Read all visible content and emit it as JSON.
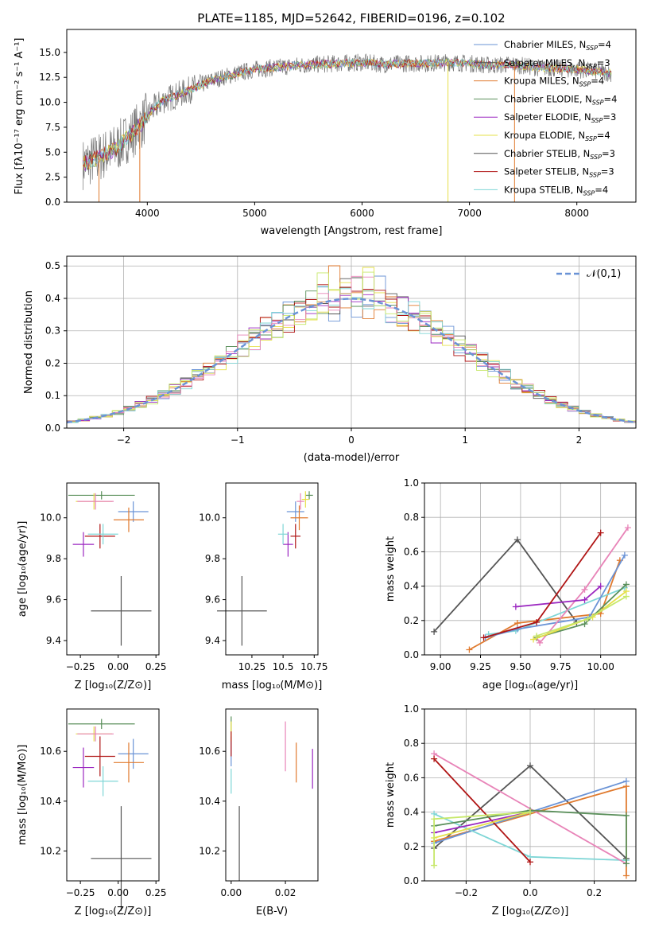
{
  "colors": {
    "Chabrier MILES": "#6a93d6",
    "Salpeter MILES": "#555555",
    "Kroupa MILES": "#e07a2e",
    "Chabrier ELODIE": "#5a8f5a",
    "Salpeter ELODIE": "#9b27c0",
    "Kroupa ELODIE": "#e6e04a",
    "Chabrier STELIB": "#555555",
    "Salpeter STELIB": "#b01515",
    "Kroupa STELIB": "#7fd6d6",
    "extra_pink": "#e884b8",
    "extra_lime": "#c7e86a",
    "normal": "#6a93d6"
  },
  "chart_data": [
    {
      "type": "line",
      "title": "PLATE=1185, MJD=52642, FIBERID=0196, z=0.102",
      "xlabel": "wavelength [Angstrom, rest frame]",
      "ylabel": "Flux [fλ10⁻¹⁷ erg cm⁻² s⁻¹ A⁻¹]",
      "xlim": [
        3250,
        8550
      ],
      "ylim": [
        0,
        17.3
      ],
      "xticks": [
        4000,
        5000,
        6000,
        7000,
        8000
      ],
      "yticks": [
        0.0,
        2.5,
        5.0,
        7.5,
        10.0,
        12.5,
        15.0
      ],
      "legend_position": "right",
      "legend": [
        "Chabrier MILES, N_SSP=4",
        "Salpeter MILES, N_SSP=3",
        "Kroupa MILES, N_SSP=4",
        "Chabrier ELODIE, N_SSP=4",
        "Salpeter ELODIE, N_SSP=3",
        "Kroupa ELODIE, N_SSP=4",
        "Chabrier STELIB, N_SSP=3",
        "Salpeter STELIB, N_SSP=3",
        "Kroupa STELIB, N_SSP=4"
      ],
      "continuum": {
        "x": [
          3400,
          3550,
          3700,
          3850,
          3950,
          4050,
          4150,
          4300,
          4450,
          4600,
          4800,
          5000,
          5200,
          5400,
          5600,
          5800,
          6000,
          6200,
          6400,
          6600,
          6800,
          7000,
          7200,
          7400,
          7600,
          7800,
          8000,
          8200,
          8320
        ],
        "y": [
          3.8,
          4.5,
          5.3,
          6.8,
          7.9,
          9.3,
          10.2,
          10.8,
          11.5,
          12.2,
          12.8,
          13.3,
          13.5,
          13.7,
          13.8,
          13.9,
          14.0,
          13.8,
          13.9,
          13.9,
          14.0,
          13.9,
          13.7,
          13.8,
          13.5,
          13.4,
          13.3,
          13.1,
          12.9
        ]
      },
      "drops": [
        3550,
        3930,
        6800,
        7420
      ]
    },
    {
      "type": "bar",
      "xlabel": "(data-model)/error",
      "ylabel": "Normed distribution",
      "xlim": [
        -2.5,
        2.5
      ],
      "ylim": [
        0,
        0.53
      ],
      "xticks": [
        -2,
        -1,
        0,
        1,
        2
      ],
      "yticks": [
        0.0,
        0.1,
        0.2,
        0.3,
        0.4,
        0.5
      ],
      "legend": [
        "𝒩(0,1)"
      ],
      "legend_position": "top-right",
      "bin_width": 0.1
    },
    {
      "type": "scatter",
      "xlabel": "Z [log₁₀(Z/Z⊙)]",
      "ylabel": "age  [log₁₀(age/yr)]",
      "xlim": [
        -0.34,
        0.27
      ],
      "ylim": [
        9.33,
        10.17
      ],
      "xticks": [
        -0.25,
        0.0,
        0.25
      ],
      "xticklabels": [
        "−0.25",
        "0.00",
        "0.25"
      ],
      "yticks": [
        9.4,
        9.6,
        9.8,
        10.0
      ],
      "points": [
        {
          "x": 0.1,
          "y": 10.03,
          "xerr": 0.1,
          "yerr": 0.05,
          "color": "#6a93d6"
        },
        {
          "x": 0.02,
          "y": 9.545,
          "xerr": 0.2,
          "yerr": 0.17,
          "color": "#555555"
        },
        {
          "x": 0.07,
          "y": 9.99,
          "xerr": 0.1,
          "yerr": 0.06,
          "color": "#e07a2e"
        },
        {
          "x": -0.11,
          "y": 10.11,
          "xerr": 0.22,
          "yerr": 0.02,
          "color": "#5a8f5a"
        },
        {
          "x": -0.23,
          "y": 9.87,
          "xerr": 0.07,
          "yerr": 0.06,
          "color": "#9b27c0"
        },
        {
          "x": -0.16,
          "y": 10.08,
          "xerr": 0.12,
          "yerr": 0.04,
          "color": "#e6e04a"
        },
        {
          "x": -0.12,
          "y": 9.91,
          "xerr": 0.1,
          "yerr": 0.06,
          "color": "#b01515"
        },
        {
          "x": -0.1,
          "y": 9.92,
          "xerr": 0.1,
          "yerr": 0.05,
          "color": "#7fd6d6"
        },
        {
          "x": -0.15,
          "y": 10.08,
          "xerr": 0.12,
          "yerr": 0.04,
          "color": "#e884b8"
        }
      ]
    },
    {
      "type": "scatter",
      "xlabel": "mass [log₁₀(M/M⊙)]",
      "ylabel": "",
      "xlim": [
        10.04,
        10.78
      ],
      "ylim": [
        9.33,
        10.17
      ],
      "xticks": [
        10.25,
        10.5,
        10.75
      ],
      "yticks": [
        9.4,
        9.6,
        9.8,
        10.0
      ],
      "points": [
        {
          "x": 10.6,
          "y": 10.03,
          "xerr": 0.07,
          "yerr": 0.05,
          "color": "#6a93d6"
        },
        {
          "x": 10.17,
          "y": 9.545,
          "xerr": 0.2,
          "yerr": 0.17,
          "color": "#555555"
        },
        {
          "x": 10.63,
          "y": 10.0,
          "xerr": 0.07,
          "yerr": 0.06,
          "color": "#e07a2e"
        },
        {
          "x": 10.71,
          "y": 10.11,
          "xerr": 0.03,
          "yerr": 0.02,
          "color": "#5a8f5a"
        },
        {
          "x": 10.54,
          "y": 9.87,
          "xerr": 0.04,
          "yerr": 0.06,
          "color": "#9b27c0"
        },
        {
          "x": 10.68,
          "y": 10.09,
          "xerr": 0.03,
          "yerr": 0.04,
          "color": "#e6e04a"
        },
        {
          "x": 10.6,
          "y": 9.91,
          "xerr": 0.04,
          "yerr": 0.06,
          "color": "#b01515"
        },
        {
          "x": 10.5,
          "y": 9.92,
          "xerr": 0.04,
          "yerr": 0.05,
          "color": "#7fd6d6"
        },
        {
          "x": 10.64,
          "y": 10.08,
          "xerr": 0.03,
          "yerr": 0.04,
          "color": "#e884b8"
        }
      ]
    },
    {
      "type": "line",
      "xlabel": "age  [log₁₀(age/yr)]",
      "ylabel": "mass weight",
      "xlim": [
        8.9,
        10.22
      ],
      "ylim": [
        0,
        1.0
      ],
      "xticks": [
        9.0,
        9.25,
        9.5,
        9.75,
        10.0
      ],
      "xticklabels": [
        "9.00",
        "9.25",
        "9.50",
        "9.75",
        "10.00"
      ],
      "yticks": [
        0.0,
        0.2,
        0.4,
        0.6,
        0.8,
        1.0
      ],
      "series": [
        {
          "color": "#555555",
          "x": [
            8.96,
            9.48,
            9.85
          ],
          "y": [
            0.135,
            0.67,
            0.19
          ]
        },
        {
          "color": "#e07a2e",
          "x": [
            9.18,
            9.48,
            10.0,
            10.12
          ],
          "y": [
            0.03,
            0.185,
            0.24,
            0.55
          ]
        },
        {
          "color": "#7fd6d6",
          "x": [
            9.3,
            9.47,
            10.15
          ],
          "y": [
            0.12,
            0.14,
            0.39
          ]
        },
        {
          "color": "#6a93d6",
          "x": [
            9.28,
            9.48,
            9.93,
            10.15
          ],
          "y": [
            0.1,
            0.15,
            0.22,
            0.58
          ]
        },
        {
          "color": "#e884b8",
          "x": [
            9.6,
            9.62,
            9.9,
            10.17
          ],
          "y": [
            0.1,
            0.07,
            0.38,
            0.74
          ]
        },
        {
          "color": "#9b27c0",
          "x": [
            9.47,
            9.9,
            10.0
          ],
          "y": [
            0.28,
            0.32,
            0.4
          ]
        },
        {
          "color": "#b01515",
          "x": [
            9.27,
            9.6,
            10.0
          ],
          "y": [
            0.1,
            0.19,
            0.71
          ]
        },
        {
          "color": "#5a8f5a",
          "x": [
            9.6,
            9.9,
            10.16
          ],
          "y": [
            0.1,
            0.18,
            0.41
          ]
        },
        {
          "color": "#e6e04a",
          "x": [
            9.58,
            9.95,
            10.16
          ],
          "y": [
            0.09,
            0.22,
            0.37
          ]
        },
        {
          "color": "#c7e86a",
          "x": [
            9.6,
            9.92,
            10.16
          ],
          "y": [
            0.11,
            0.21,
            0.34
          ]
        }
      ]
    },
    {
      "type": "scatter",
      "xlabel": "Z [log₁₀(Z/Z⊙)]",
      "ylabel": "mass [log₁₀(M/M⊙)]",
      "xlim": [
        -0.34,
        0.27
      ],
      "ylim": [
        10.08,
        10.77
      ],
      "xticks": [
        -0.25,
        0.0,
        0.25
      ],
      "xticklabels": [
        "−0.25",
        "0.00",
        "0.25"
      ],
      "yticks": [
        10.2,
        10.4,
        10.6
      ],
      "points": [
        {
          "x": 0.1,
          "y": 10.59,
          "xerr": 0.1,
          "yerr": 0.06,
          "color": "#6a93d6"
        },
        {
          "x": 0.02,
          "y": 10.17,
          "xerr": 0.2,
          "yerr": 0.21,
          "color": "#555555"
        },
        {
          "x": 0.07,
          "y": 10.555,
          "xerr": 0.1,
          "yerr": 0.08,
          "color": "#e07a2e"
        },
        {
          "x": -0.11,
          "y": 10.71,
          "xerr": 0.22,
          "yerr": 0.02,
          "color": "#5a8f5a"
        },
        {
          "x": -0.23,
          "y": 10.535,
          "xerr": 0.07,
          "yerr": 0.08,
          "color": "#9b27c0"
        },
        {
          "x": -0.16,
          "y": 10.67,
          "xerr": 0.12,
          "yerr": 0.03,
          "color": "#e6e04a"
        },
        {
          "x": -0.12,
          "y": 10.58,
          "xerr": 0.1,
          "yerr": 0.08,
          "color": "#b01515"
        },
        {
          "x": -0.1,
          "y": 10.48,
          "xerr": 0.1,
          "yerr": 0.06,
          "color": "#7fd6d6"
        },
        {
          "x": -0.15,
          "y": 10.67,
          "xerr": 0.12,
          "yerr": 0.03,
          "color": "#e884b8"
        }
      ]
    },
    {
      "type": "scatter",
      "xlabel": "E(B-V)",
      "ylabel": "",
      "xlim": [
        -0.002,
        0.032
      ],
      "ylim": [
        10.08,
        10.77
      ],
      "xticks": [
        0.0,
        0.02
      ],
      "xticklabels": [
        "0.00",
        "0.02"
      ],
      "yticks": [
        10.2,
        10.4,
        10.6
      ],
      "points": [
        {
          "x": 0.0,
          "y": 10.6,
          "xerr": 0,
          "yerr": 0.06,
          "color": "#6a93d6"
        },
        {
          "x": 0.003,
          "y": 10.23,
          "xerr": 0,
          "yerr": 0.15,
          "color": "#555555"
        },
        {
          "x": 0.024,
          "y": 10.555,
          "xerr": 0,
          "yerr": 0.08,
          "color": "#e07a2e"
        },
        {
          "x": 0.0,
          "y": 10.71,
          "xerr": 0,
          "yerr": 0.03,
          "color": "#5a8f5a"
        },
        {
          "x": 0.03,
          "y": 10.53,
          "xerr": 0,
          "yerr": 0.08,
          "color": "#9b27c0"
        },
        {
          "x": 0.0,
          "y": 10.68,
          "xerr": 0,
          "yerr": 0.04,
          "color": "#e6e04a"
        },
        {
          "x": 0.0,
          "y": 10.63,
          "xerr": 0,
          "yerr": 0.05,
          "color": "#b01515"
        },
        {
          "x": 0.0,
          "y": 10.48,
          "xerr": 0,
          "yerr": 0.05,
          "color": "#7fd6d6"
        },
        {
          "x": 0.02,
          "y": 10.62,
          "xerr": 0,
          "yerr": 0.1,
          "color": "#e884b8"
        }
      ]
    },
    {
      "type": "line",
      "xlabel": "Z [log₁₀(Z/Z⊙)]",
      "ylabel": "mass weight",
      "xlim": [
        -0.33,
        0.33
      ],
      "ylim": [
        0,
        1.0
      ],
      "xticks": [
        -0.2,
        0.0,
        0.2
      ],
      "xticklabels": [
        "−0.2",
        "0.0",
        "0.2"
      ],
      "yticks": [
        0.0,
        0.2,
        0.4,
        0.6,
        0.8,
        1.0
      ],
      "series": [
        {
          "color": "#555555",
          "x": [
            -0.3,
            0.0,
            0.3
          ],
          "y": [
            0.19,
            0.67,
            0.13
          ]
        },
        {
          "color": "#e07a2e",
          "x": [
            -0.3,
            0.3,
            0.3
          ],
          "y": [
            0.23,
            0.55,
            0.03
          ]
        },
        {
          "color": "#6a93d6",
          "x": [
            -0.3,
            0.0,
            0.3
          ],
          "y": [
            0.22,
            0.4,
            0.58
          ]
        },
        {
          "color": "#7fd6d6",
          "x": [
            -0.3,
            0.0,
            0.3
          ],
          "y": [
            0.39,
            0.14,
            0.12
          ]
        },
        {
          "color": "#e884b8",
          "x": [
            -0.3,
            0.3
          ],
          "y": [
            0.74,
            0.1
          ]
        },
        {
          "color": "#b01515",
          "x": [
            -0.3,
            0.0
          ],
          "y": [
            0.71,
            0.11
          ]
        },
        {
          "color": "#9b27c0",
          "x": [
            -0.3,
            0.0
          ],
          "y": [
            0.28,
            0.4
          ]
        },
        {
          "color": "#5a8f5a",
          "x": [
            -0.3,
            0.0,
            0.3,
            0.3
          ],
          "y": [
            0.32,
            0.41,
            0.38,
            0.1
          ]
        },
        {
          "color": "#e6e04a",
          "x": [
            -0.3,
            0.0
          ],
          "y": [
            0.25,
            0.4
          ]
        },
        {
          "color": "#c7e86a",
          "x": [
            -0.3,
            -0.3,
            0.0
          ],
          "y": [
            0.09,
            0.36,
            0.4
          ]
        }
      ]
    }
  ]
}
